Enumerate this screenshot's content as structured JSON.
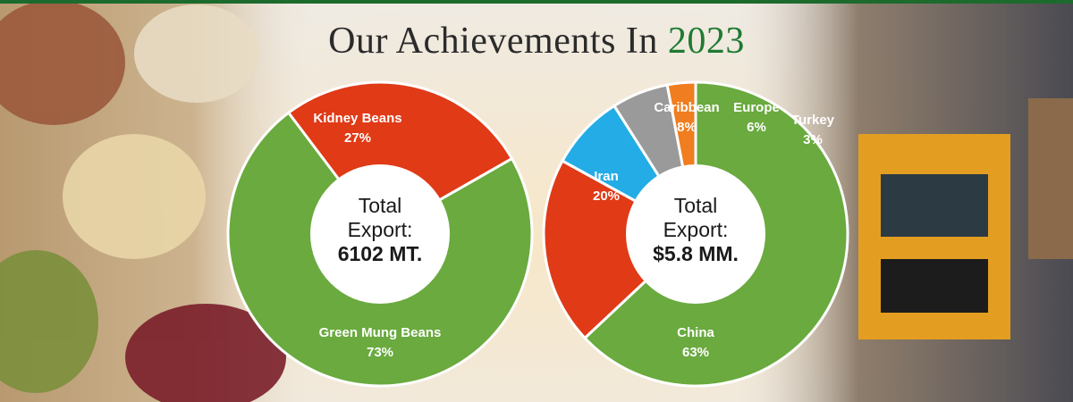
{
  "heading": {
    "text": "Our Achievements In",
    "year": "2023"
  },
  "colors": {
    "green": "#6aaa3f",
    "red": "#e03a17",
    "blue": "#23ace6",
    "gray": "#9a9a9a",
    "orange": "#f07d1f",
    "title_green": "#1f7a32"
  },
  "chart_data": [
    {
      "type": "pie",
      "center_text": [
        "Total",
        "Export:",
        "6102 MT."
      ],
      "series": [
        {
          "name": "Kidney Beans",
          "value": 27,
          "label": "27%",
          "color": "#e03a17"
        },
        {
          "name": "Green Mung Beans",
          "value": 73,
          "label": "73%",
          "color": "#6aaa3f"
        }
      ]
    },
    {
      "type": "pie",
      "center_text": [
        "Total",
        "Export:",
        "$5.8 MM."
      ],
      "series": [
        {
          "name": "China",
          "value": 63,
          "label": "63%",
          "color": "#6aaa3f"
        },
        {
          "name": "Iran",
          "value": 20,
          "label": "20%",
          "color": "#e03a17"
        },
        {
          "name": "Caribbean",
          "value": 8,
          "label": "8%",
          "color": "#23ace6"
        },
        {
          "name": "Europe",
          "value": 6,
          "label": "6%",
          "color": "#9a9a9a"
        },
        {
          "name": "Turkey",
          "value": 3,
          "label": "3%",
          "color": "#f07d1f"
        }
      ]
    }
  ]
}
